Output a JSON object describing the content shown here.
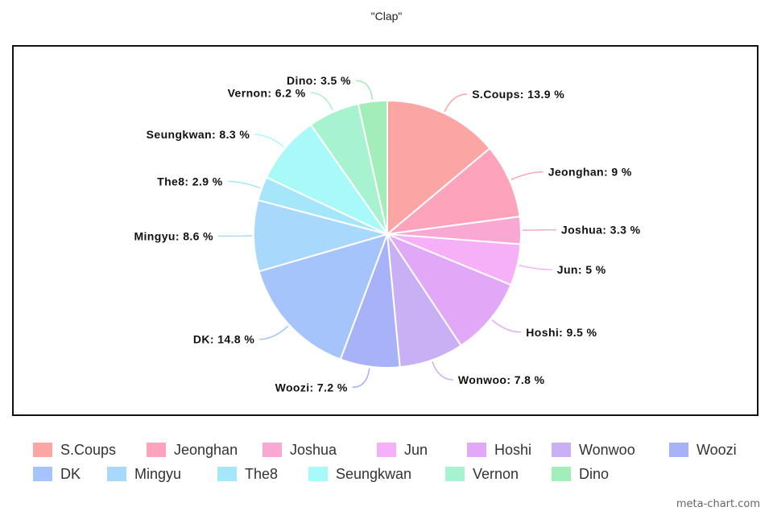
{
  "chart_data": {
    "type": "pie",
    "title": "\"Clap\"",
    "legend_position": "bottom",
    "slices": [
      {
        "label": "S.Coups",
        "value": 13.9,
        "color": "#FCA5A5"
      },
      {
        "label": "Jeonghan",
        "value": 9,
        "color": "#FDA4BC"
      },
      {
        "label": "Joshua",
        "value": 3.3,
        "color": "#F9A8D4"
      },
      {
        "label": "Jun",
        "value": 5,
        "color": "#F5B0F7"
      },
      {
        "label": "Hoshi",
        "value": 9.5,
        "color": "#E2A8F8"
      },
      {
        "label": "Wonwoo",
        "value": 7.8,
        "color": "#C9B0F5"
      },
      {
        "label": "Woozi",
        "value": 7.2,
        "color": "#A8B2F8"
      },
      {
        "label": "DK",
        "value": 14.8,
        "color": "#A5C4FC"
      },
      {
        "label": "Mingyu",
        "value": 8.6,
        "color": "#A8D8FB"
      },
      {
        "label": "The8",
        "value": 2.9,
        "color": "#A5E6FA"
      },
      {
        "label": "Seungkwan",
        "value": 8.3,
        "color": "#A8FAF8"
      },
      {
        "label": "Vernon",
        "value": 6.2,
        "color": "#A7F3D0"
      },
      {
        "label": "Dino",
        "value": 3.5,
        "color": "#A3EDB8"
      }
    ]
  },
  "watermark": "meta-chart.com"
}
